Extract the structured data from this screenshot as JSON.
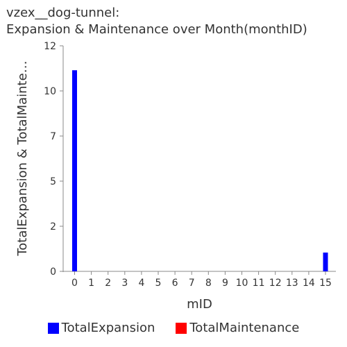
{
  "chart_data": {
    "type": "bar",
    "title": "vzex__dog-tunnel:\nExpansion & Maintenance over Month(monthID)",
    "xlabel": "mID",
    "ylabel": "TotalExpansion & TotalMainte…",
    "categories": [
      "0",
      "1",
      "2",
      "3",
      "4",
      "5",
      "6",
      "7",
      "8",
      "9",
      "10",
      "11",
      "12",
      "13",
      "14",
      "15"
    ],
    "ylim": [
      0,
      12
    ],
    "yticks": [
      {
        "value": 0,
        "label": "0"
      },
      {
        "value": 2.4,
        "label": "2"
      },
      {
        "value": 4.8,
        "label": "5"
      },
      {
        "value": 7.2,
        "label": "7"
      },
      {
        "value": 9.6,
        "label": "10"
      },
      {
        "value": 12,
        "label": "12"
      }
    ],
    "series": [
      {
        "name": "TotalExpansion",
        "color": "#0000ff",
        "values": [
          10.7,
          0,
          0,
          0,
          0,
          0,
          0,
          0,
          0,
          0,
          0,
          0,
          0,
          0,
          0,
          1
        ]
      },
      {
        "name": "TotalMaintenance",
        "color": "#ff0000",
        "values": [
          0,
          0,
          0,
          0,
          0,
          0,
          0,
          0,
          0,
          0,
          0,
          0,
          0,
          0,
          0,
          0
        ]
      }
    ],
    "grid": false,
    "legend_position": "bottom"
  }
}
